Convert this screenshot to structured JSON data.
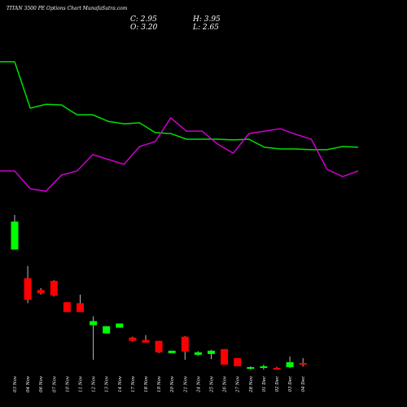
{
  "chart_data": {
    "type": "candlestick",
    "title": "TITAN 3500 PE Options Chart MunafaSutra.com",
    "ohlc_labels": [
      "C: 2.95",
      "H: 3.95",
      "O: 3.20",
      "L: 2.65"
    ],
    "categories": [
      "03 Nov",
      "04 Nov",
      "06 Nov",
      "07 Nov",
      "10 Nov",
      "11 Nov",
      "12 Nov",
      "13 Nov",
      "14 Nov",
      "17 Nov",
      "18 Nov",
      "19 Nov",
      "20 Nov",
      "21 Nov",
      "24 Nov",
      "25 Nov",
      "26 Nov",
      "27 Nov",
      "28 Nov",
      "01 Dec",
      "02 Dec",
      "03 Dec",
      "04 Dec"
    ],
    "open": [
      20.45,
      16.1,
      14.3,
      15.7,
      12.45,
      12.3,
      8.95,
      7.7,
      8.57,
      7.07,
      6.7,
      6.57,
      4.7,
      7.2,
      4.45,
      4.57,
      5.32,
      3.95,
      2.32,
      2.45,
      2.45,
      2.57,
      3.2
    ],
    "high": [
      25.7,
      17.95,
      14.6,
      15.8,
      12.45,
      13.6,
      10.3,
      8.8,
      9.2,
      7.2,
      7.45,
      6.57,
      5.07,
      7.3,
      5.0,
      5.2,
      5.32,
      3.95,
      2.7,
      2.95,
      2.6,
      4.2,
      3.95
    ],
    "low": [
      20.45,
      12.3,
      13.6,
      13.3,
      10.95,
      10.95,
      3.7,
      7.7,
      8.57,
      6.45,
      6.3,
      4.7,
      4.7,
      3.7,
      4.3,
      3.8,
      2.95,
      2.7,
      2.2,
      2.2,
      2.2,
      2.45,
      2.65
    ],
    "close": [
      24.7,
      12.8,
      13.8,
      13.45,
      10.95,
      10.95,
      9.57,
      8.8,
      9.2,
      6.57,
      6.3,
      4.83,
      5.07,
      4.95,
      4.83,
      5.07,
      2.95,
      2.7,
      2.57,
      2.7,
      2.2,
      3.32,
      2.95
    ],
    "up_color": "#00ff00",
    "down_color": "#ff0000",
    "ylim": [
      2.7,
      58.4
    ],
    "y2lim": [
      0,
      100
    ],
    "series": [
      {
        "name": "green-line",
        "color": "#00e000",
        "axis": "y2",
        "values": [
          74.7,
          55.7,
          57.3,
          57,
          53,
          53,
          50.3,
          49.3,
          49.7,
          45.7,
          45.3,
          43,
          43,
          43,
          42.7,
          43,
          39.7,
          39,
          39,
          38.7,
          38.7,
          40,
          39.7
        ]
      },
      {
        "name": "magenta-line",
        "color": "#cc00cc",
        "axis": "y2",
        "values": [
          30,
          22.7,
          21.7,
          28.3,
          30,
          36.7,
          34.7,
          32.7,
          40,
          42,
          51.7,
          46.3,
          46.3,
          41,
          37.3,
          45.3,
          46.3,
          47.3,
          45,
          43,
          30.7,
          27.7,
          30
        ]
      }
    ]
  }
}
